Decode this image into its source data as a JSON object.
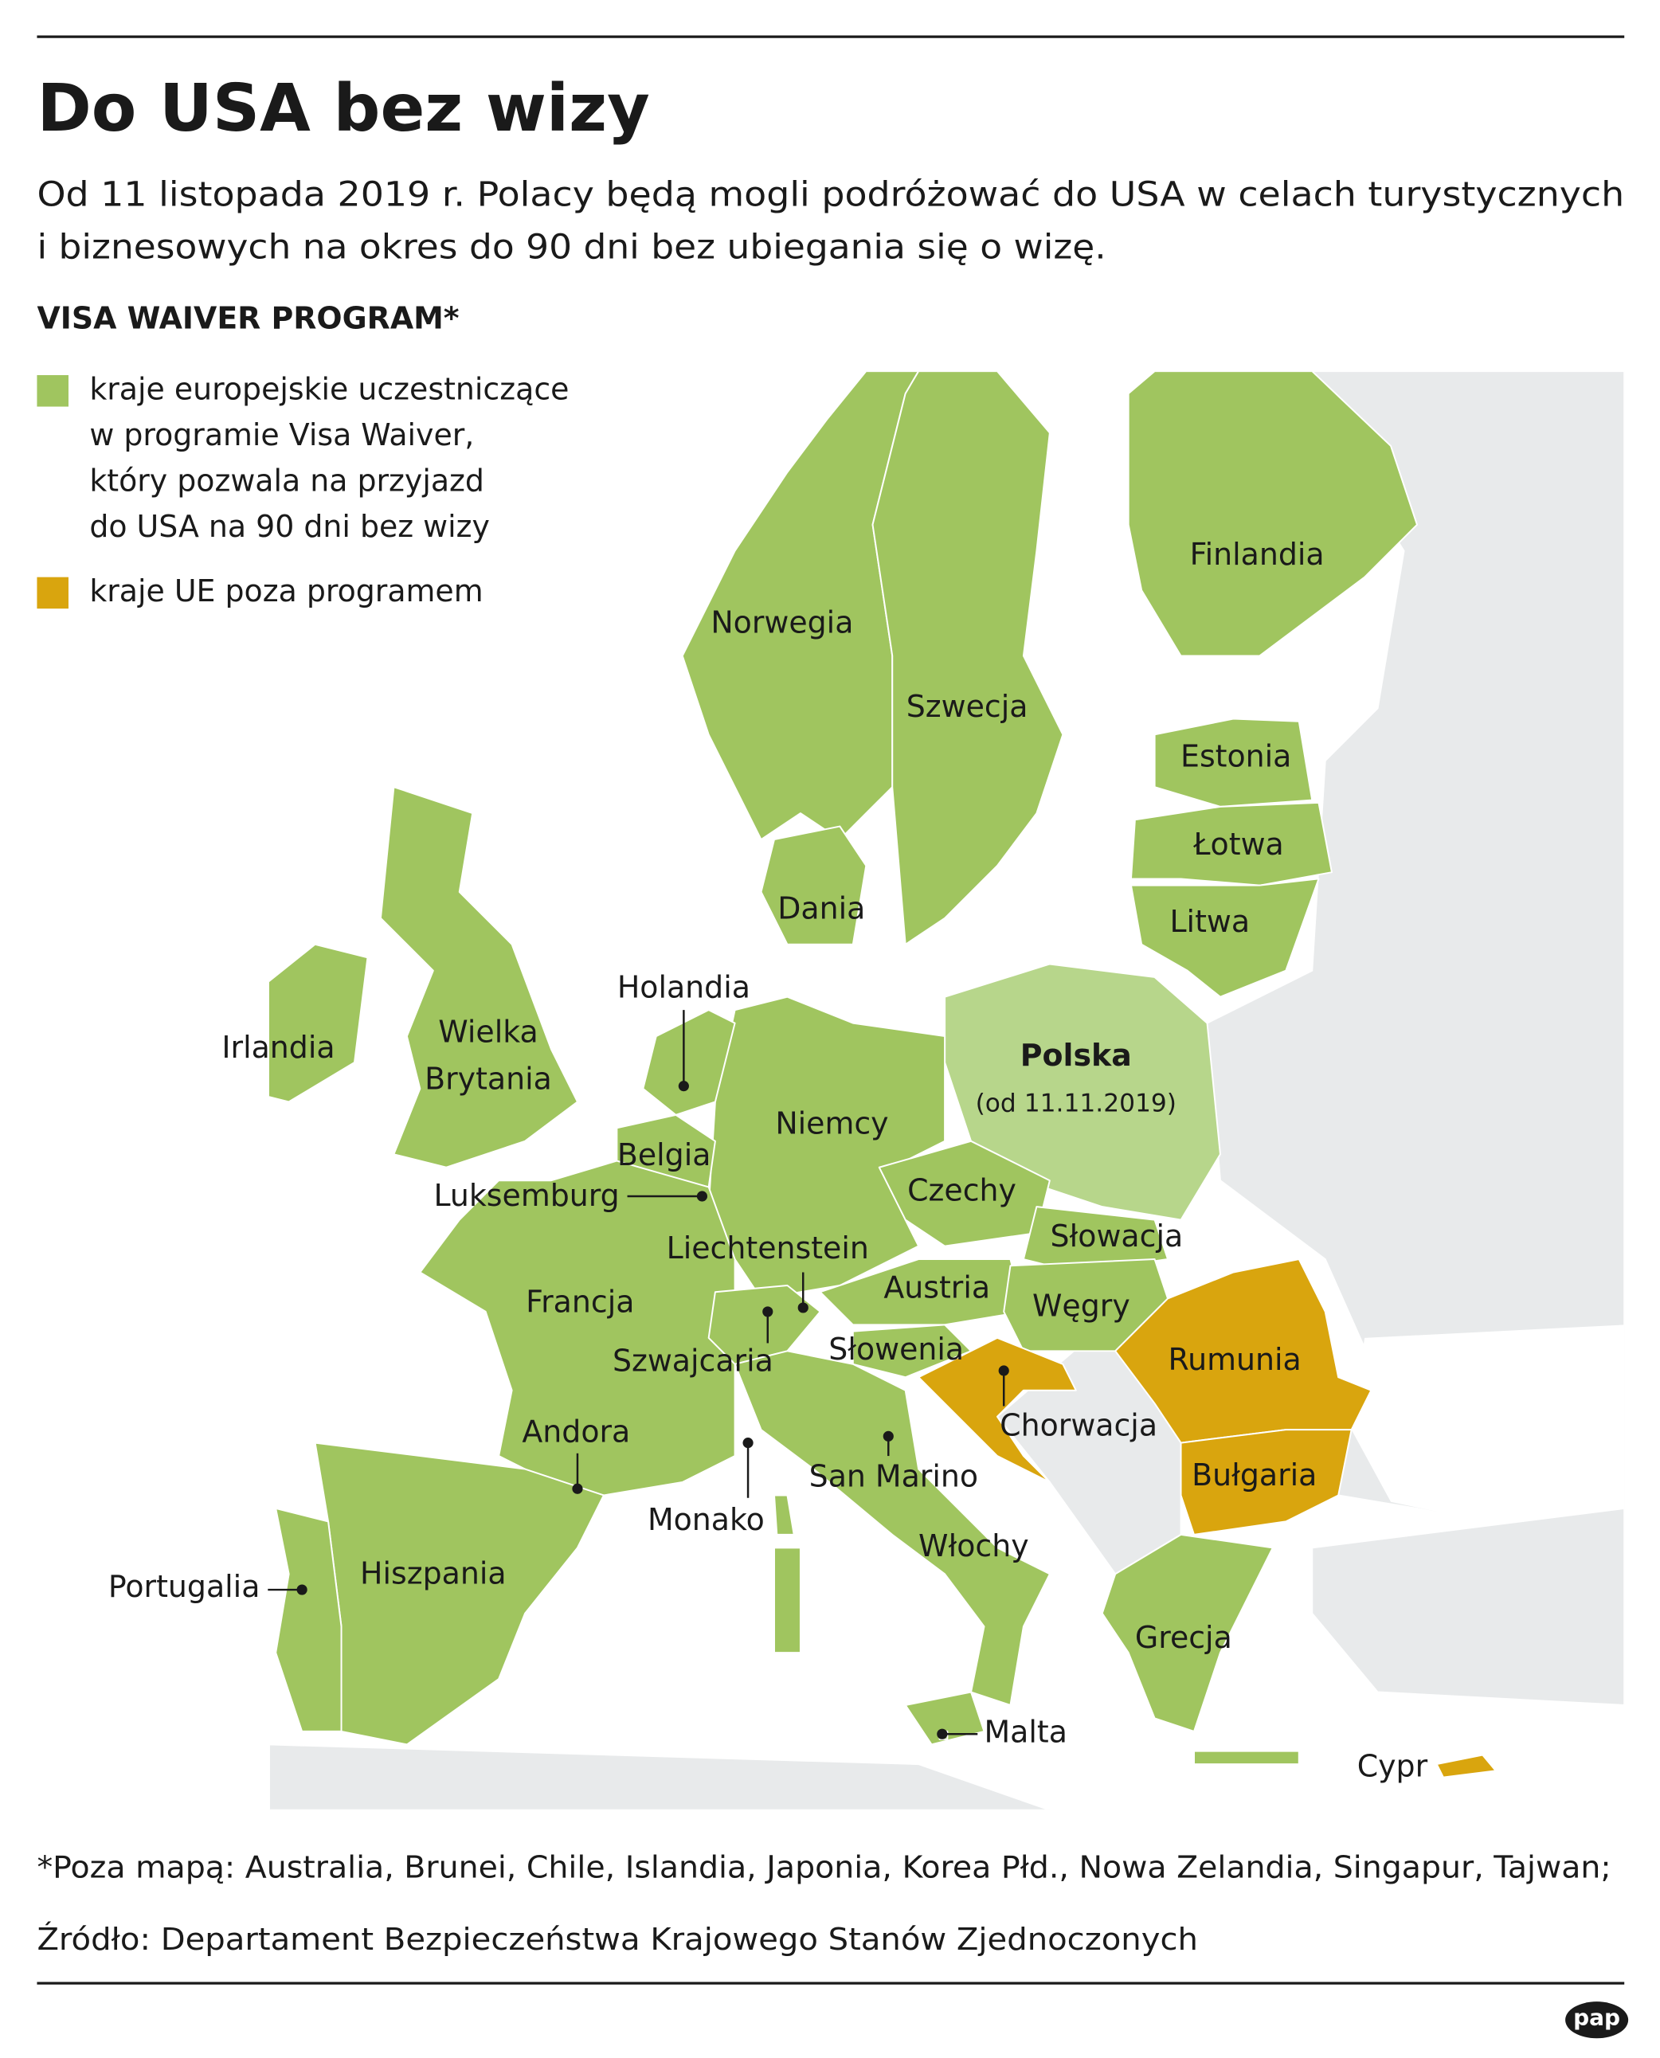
{
  "header": {
    "title": "Do USA bez wizy",
    "subtitle": [
      "Od 11 listopada 2019 r. Polacy będą mogli podróżować do USA w celach turystycznych",
      "i biznesowych na okres do 90 dni bez ubiegania się o wizę."
    ]
  },
  "legend": {
    "title": "VISA WAIVER PROGRAM*",
    "items": [
      {
        "label": [
          "kraje europejskie uczestniczące",
          "w programie Visa Waiver,",
          "który pozwala na przyjazd",
          "do USA na 90 dni bez wizy"
        ],
        "color": "#a0c55f"
      },
      {
        "label": [
          "kraje UE poza programem"
        ],
        "color": "#d9a50e"
      }
    ]
  },
  "map": {
    "labels": [
      "Norwegia",
      "Szwecja",
      "Finlandia",
      "Estonia",
      "Łotwa",
      "Litwa",
      "Dania",
      "Holandia",
      "Irlandia",
      [
        "Wielka",
        "Brytania"
      ],
      "Belgia",
      "Luksemburg",
      "Niemcy",
      [
        "Polska",
        "(od 11.11.2019)"
      ],
      "Czechy",
      "Słowacja",
      "Liechtenstein",
      "Austria",
      "Węgry",
      "Francja",
      "Szwajcaria",
      "Słowenia",
      "Rumunia",
      "Chorwacja",
      "Andora",
      "Monako",
      "San Marino",
      "Bułgaria",
      "Włochy",
      "Portugalia",
      "Hiszpania",
      "Grecja",
      "Malta",
      "Cypr"
    ]
  },
  "footer": {
    "note": "*Poza mapą: Australia, Brunei, Chile, Islandia, Japonia, Korea Płd., Nowa Zelandia, Singapur, Tajwan;",
    "source": "Źródło: Departament Bezpieczeństwa Krajowego Stanów Zjednoczonych",
    "logo": "pap"
  }
}
